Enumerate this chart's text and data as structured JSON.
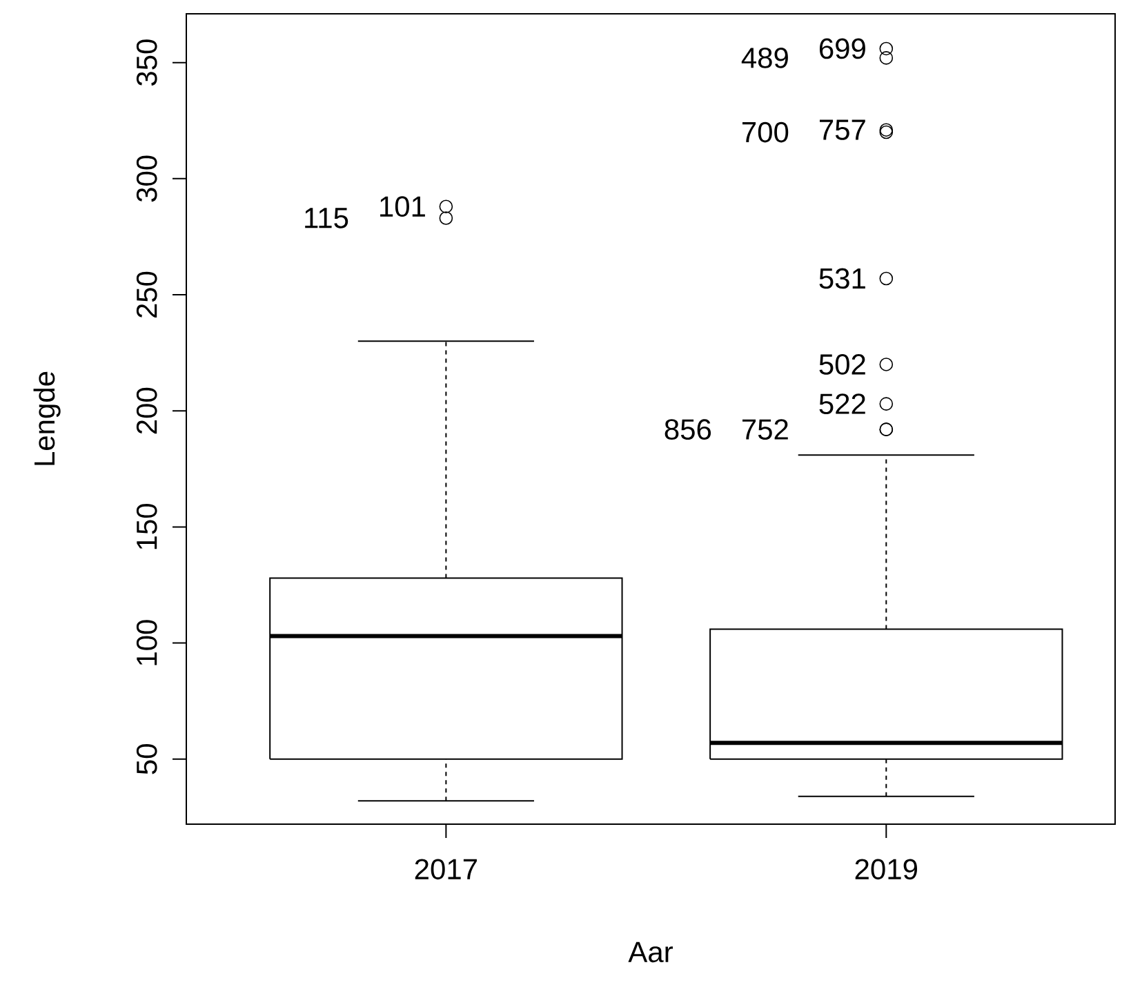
{
  "chart_data": {
    "type": "box",
    "xlabel": "Aar",
    "ylabel": "Lengde",
    "categories": [
      "2017",
      "2019"
    ],
    "boxes": [
      {
        "low": 32,
        "q1": 50,
        "median": 103,
        "q3": 128,
        "high": 230,
        "outliers": [
          288,
          283
        ]
      },
      {
        "low": 34,
        "q1": 50,
        "median": 57,
        "q3": 106,
        "high": 181,
        "outliers": [
          356,
          352,
          321,
          320,
          257,
          220,
          203,
          192,
          192
        ]
      }
    ],
    "ylim": [
      22,
      371
    ],
    "yticks": [
      50,
      100,
      150,
      200,
      250,
      300,
      350
    ],
    "annotations": [
      "101",
      "115",
      "699",
      "489",
      "757",
      "700",
      "531",
      "502",
      "522",
      "752",
      "856"
    ]
  }
}
